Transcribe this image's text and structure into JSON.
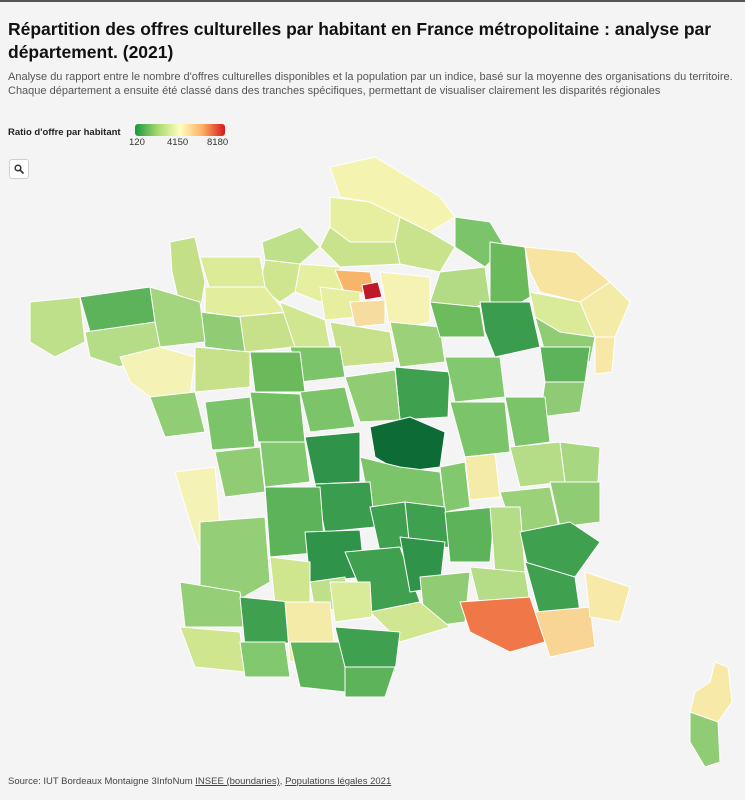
{
  "header": {
    "title": "Répartition des offres culturelles par habitant en France métropolitaine : analyse par département. (2021)",
    "subtitle": "Analyse du rapport entre le nombre d'offres culturelles disponibles et la population par un indice, basé sur la moyenne des organisations du territoire. Chaque département a ensuite été classé dans des tranches spécifiques, permettant de visualiser clairement les disparités régionales"
  },
  "legend": {
    "title": "Ratio d'offre par habitant",
    "min": "120",
    "mid": "4150",
    "max": "8180",
    "colors": [
      "#1a9641",
      "#a6d96a",
      "#ffffbf",
      "#fdae61",
      "#d7191c"
    ]
  },
  "zoom": {
    "icon": "search-icon"
  },
  "source": {
    "prefix": "Source: IUT Bordeaux Montaigne 3InfoNum",
    "link1": "INSEE (boundaries)",
    "sep": ",",
    "link2": "Populations légales 2021"
  }
}
